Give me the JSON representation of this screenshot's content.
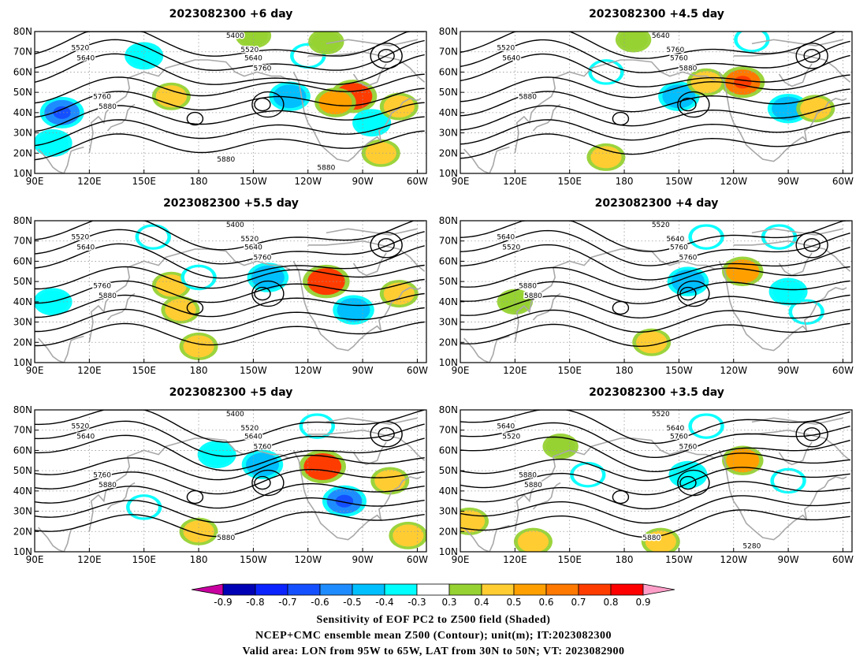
{
  "panels": [
    {
      "title": "2023082300  +6 day",
      "contour_labels": [
        "5400",
        "5520",
        "5640",
        "5520",
        "5640",
        "5760",
        "5760",
        "5880",
        "5880",
        "5880"
      ],
      "shading": [
        {
          "lon": 105,
          "lat": 40,
          "v": -0.6
        },
        {
          "lon": 230,
          "lat": 48,
          "v": -0.5
        },
        {
          "lon": 265,
          "lat": 48,
          "v": 0.7
        },
        {
          "lon": 255,
          "lat": 45,
          "v": 0.5
        },
        {
          "lon": 275,
          "lat": 35,
          "v": -0.4
        },
        {
          "lon": 290,
          "lat": 43,
          "v": 0.4
        },
        {
          "lon": 100,
          "lat": 25,
          "v": -0.4
        },
        {
          "lon": 150,
          "lat": 68,
          "v": -0.4
        },
        {
          "lon": 240,
          "lat": 68,
          "v": -0.3
        },
        {
          "lon": 165,
          "lat": 48,
          "v": 0.4
        },
        {
          "lon": 280,
          "lat": 20,
          "v": 0.4
        },
        {
          "lon": 210,
          "lat": 78,
          "v": 0.3
        },
        {
          "lon": 250,
          "lat": 75,
          "v": 0.3
        }
      ]
    },
    {
      "title": "2023082300  +4.5 day",
      "contour_labels": [
        "5640",
        "5520",
        "5640",
        "5760",
        "5760",
        "5880",
        "5880"
      ],
      "shading": [
        {
          "lon": 210,
          "lat": 48,
          "v": -0.5
        },
        {
          "lon": 245,
          "lat": 55,
          "v": 0.6
        },
        {
          "lon": 270,
          "lat": 42,
          "v": -0.5
        },
        {
          "lon": 285,
          "lat": 42,
          "v": 0.4
        },
        {
          "lon": 250,
          "lat": 76,
          "v": -0.3
        },
        {
          "lon": 170,
          "lat": 18,
          "v": 0.4
        },
        {
          "lon": 185,
          "lat": 76,
          "v": 0.3
        },
        {
          "lon": 170,
          "lat": 60,
          "v": -0.3
        },
        {
          "lon": 225,
          "lat": 55,
          "v": 0.4
        }
      ]
    },
    {
      "title": "2023082300  +5.5 day",
      "contour_labels": [
        "5400",
        "5520",
        "5640",
        "5520",
        "5640",
        "5760",
        "5760",
        "5880"
      ],
      "shading": [
        {
          "lon": 218,
          "lat": 52,
          "v": -0.5
        },
        {
          "lon": 250,
          "lat": 50,
          "v": 0.7
        },
        {
          "lon": 265,
          "lat": 36,
          "v": -0.5
        },
        {
          "lon": 290,
          "lat": 44,
          "v": 0.4
        },
        {
          "lon": 100,
          "lat": 40,
          "v": -0.4
        },
        {
          "lon": 155,
          "lat": 72,
          "v": -0.3
        },
        {
          "lon": 165,
          "lat": 48,
          "v": 0.4
        },
        {
          "lon": 170,
          "lat": 36,
          "v": 0.4
        },
        {
          "lon": 180,
          "lat": 18,
          "v": 0.4
        },
        {
          "lon": 180,
          "lat": 52,
          "v": -0.3
        }
      ]
    },
    {
      "title": "2023082300  +4 day",
      "contour_labels": [
        "5520",
        "5640",
        "5520",
        "5640",
        "5760",
        "5760",
        "5880",
        "5880"
      ],
      "shading": [
        {
          "lon": 215,
          "lat": 50,
          "v": -0.5
        },
        {
          "lon": 245,
          "lat": 55,
          "v": 0.5
        },
        {
          "lon": 270,
          "lat": 45,
          "v": -0.4
        },
        {
          "lon": 195,
          "lat": 20,
          "v": 0.4
        },
        {
          "lon": 225,
          "lat": 72,
          "v": -0.3
        },
        {
          "lon": 265,
          "lat": 72,
          "v": -0.3
        },
        {
          "lon": 120,
          "lat": 40,
          "v": 0.3
        },
        {
          "lon": 280,
          "lat": 35,
          "v": -0.3
        }
      ]
    },
    {
      "title": "2023082300  +5 day",
      "contour_labels": [
        "5400",
        "5520",
        "5640",
        "5520",
        "5640",
        "5760",
        "5760",
        "5880",
        "5880"
      ],
      "shading": [
        {
          "lon": 215,
          "lat": 53,
          "v": -0.5
        },
        {
          "lon": 248,
          "lat": 52,
          "v": 0.7
        },
        {
          "lon": 260,
          "lat": 35,
          "v": -0.6
        },
        {
          "lon": 285,
          "lat": 45,
          "v": 0.4
        },
        {
          "lon": 190,
          "lat": 58,
          "v": -0.4
        },
        {
          "lon": 245,
          "lat": 72,
          "v": -0.3
        },
        {
          "lon": 180,
          "lat": 20,
          "v": 0.4
        },
        {
          "lon": 295,
          "lat": 18,
          "v": 0.4
        },
        {
          "lon": 150,
          "lat": 32,
          "v": -0.3
        }
      ]
    },
    {
      "title": "2023082300  +3.5 day",
      "contour_labels": [
        "5520",
        "5640",
        "5520",
        "5640",
        "5760",
        "5760",
        "5880",
        "5880",
        "5880",
        "5280"
      ],
      "shading": [
        {
          "lon": 215,
          "lat": 48,
          "v": -0.4
        },
        {
          "lon": 245,
          "lat": 55,
          "v": 0.5
        },
        {
          "lon": 225,
          "lat": 72,
          "v": -0.3
        },
        {
          "lon": 200,
          "lat": 15,
          "v": 0.4
        },
        {
          "lon": 130,
          "lat": 15,
          "v": 0.4
        },
        {
          "lon": 95,
          "lat": 25,
          "v": 0.4
        },
        {
          "lon": 270,
          "lat": 45,
          "v": -0.3
        },
        {
          "lon": 160,
          "lat": 48,
          "v": -0.3
        },
        {
          "lon": 145,
          "lat": 62,
          "v": 0.3
        }
      ]
    }
  ],
  "axes": {
    "x_ticks": [
      "90E",
      "120E",
      "150E",
      "180",
      "150W",
      "120W",
      "90W",
      "60W"
    ],
    "y_ticks": [
      "10N",
      "20N",
      "30N",
      "40N",
      "50N",
      "60N",
      "70N",
      "80N"
    ],
    "lon_range": [
      90,
      305
    ],
    "lat_range": [
      10,
      80
    ],
    "x_tick_lons": [
      90,
      120,
      150,
      180,
      210,
      240,
      270,
      300
    ],
    "y_tick_lats": [
      10,
      20,
      30,
      40,
      50,
      60,
      70,
      80
    ]
  },
  "colorbar": {
    "labels": [
      "-0.9",
      "-0.8",
      "-0.7",
      "-0.6",
      "-0.5",
      "-0.4",
      "-0.3",
      "0.3",
      "0.4",
      "0.5",
      "0.6",
      "0.7",
      "0.8",
      "0.9"
    ],
    "colors": [
      "#0000b4",
      "#0a23ff",
      "#1450ff",
      "#1e8cff",
      "#00bfff",
      "#00ffff",
      "#ffffff",
      "#96d232",
      "#ffcd32",
      "#ffa000",
      "#ff7800",
      "#ff3c00",
      "#ff0000"
    ],
    "under_color": "#c800a0",
    "over_color": "#ff9ec8"
  },
  "colors": {
    "coast": "#a8a8a8",
    "contour": "#000000",
    "grid": "#999999"
  },
  "caption": [
    "Sensitivity of EOF PC2 to Z500 field (Shaded)",
    "NCEP+CMC ensemble mean Z500 (Contour); unit(m); IT:2023082300",
    "Valid area: LON from 95W to 65W, LAT from 30N to 50N; VT: 2023082900"
  ]
}
